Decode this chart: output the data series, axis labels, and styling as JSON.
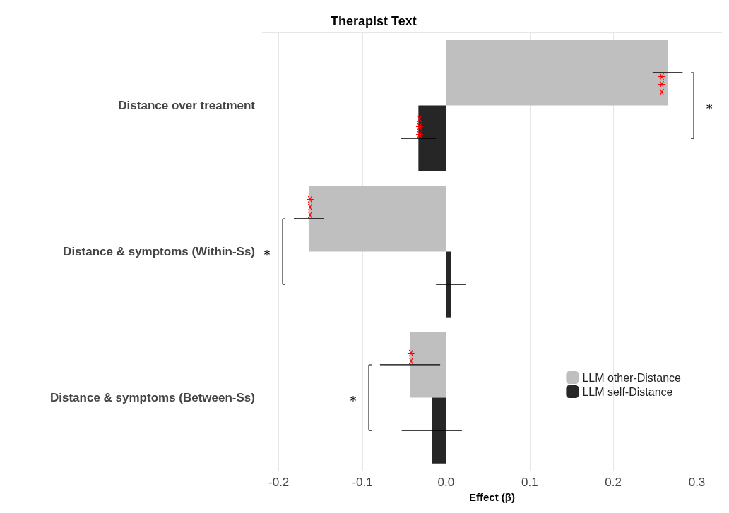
{
  "chart_data": {
    "type": "bar",
    "orientation": "horizontal",
    "title": "Therapist Text",
    "xlabel": "Effect (β)",
    "categories": [
      "Distance over treatment",
      "Distance & symptoms (Within-Ss)",
      "Distance & symptoms (Between-Ss)"
    ],
    "series": [
      {
        "name": "LLM other-Distance",
        "color": "#bfbfbf",
        "values": [
          0.265,
          -0.164,
          -0.043
        ],
        "errors": [
          0.018,
          0.018,
          0.036
        ],
        "value_labels": [
          "***",
          "***",
          "**"
        ]
      },
      {
        "name": "LLM self-Distance",
        "color": "#262626",
        "values": [
          -0.033,
          0.006,
          -0.017
        ],
        "errors": [
          0.021,
          0.018,
          0.036
        ],
        "value_labels": [
          "***",
          null,
          null
        ]
      }
    ],
    "xlim": [
      -0.22,
      0.33
    ],
    "xticks": [
      -0.2,
      -0.1,
      {
        "value": 0,
        "label": "0.0"
      },
      0.1,
      0.2,
      0.3
    ],
    "annotations": [
      "*",
      "*",
      "*"
    ],
    "grid": true,
    "legend": "bottom right"
  }
}
